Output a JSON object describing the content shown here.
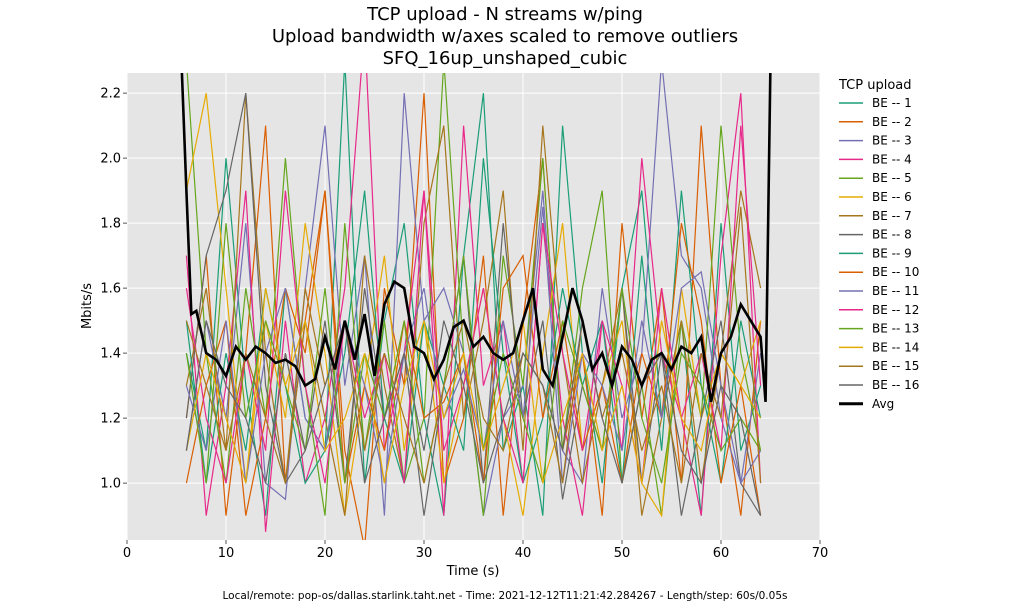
{
  "chart_data": {
    "type": "line",
    "title": [
      "TCP upload - N streams w/ping",
      "Upload bandwidth w/axes scaled to remove outliers",
      "SFQ_16up_unshaped_cubic"
    ],
    "xlabel": "Time (s)",
    "ylabel": "Mbits/s",
    "xlim": [
      0,
      70
    ],
    "ylim": [
      0.825,
      2.262
    ],
    "xticks": [
      0,
      10,
      20,
      30,
      40,
      50,
      60,
      70
    ],
    "yticks": [
      1.0,
      1.2,
      1.4,
      1.6,
      1.8,
      2.0,
      2.2
    ],
    "grid": true,
    "background": "#e5e5e5",
    "legend": {
      "title": "TCP upload",
      "placement": "right-outside"
    },
    "footer": "Local/remote: pop-os/dallas.starlink.taht.net - Time: 2021-12-12T11:21:42.284267 - Length/step: 60s/0.05s",
    "be_x": [
      6,
      8,
      10,
      12,
      14,
      16,
      18,
      20,
      22,
      24,
      26,
      28,
      30,
      32,
      34,
      36,
      38,
      40,
      42,
      44,
      46,
      48,
      50,
      52,
      54,
      56,
      58,
      60,
      62,
      64
    ],
    "series": [
      {
        "name": "BE -- 1",
        "color": "#1b9e77",
        "values": [
          1.4,
          1.1,
          2.0,
          1.3,
          0.9,
          1.6,
          1.2,
          1.1,
          2.3,
          1.0,
          1.5,
          1.8,
          1.2,
          0.9,
          1.7,
          2.2,
          1.1,
          1.3,
          0.9,
          2.1,
          1.4,
          1.0,
          1.6,
          1.9,
          1.2,
          1.5,
          0.9,
          1.8,
          1.1,
          1.3
        ]
      },
      {
        "name": "BE -- 2",
        "color": "#d95f02",
        "values": [
          1.2,
          1.7,
          0.9,
          1.4,
          2.1,
          1.0,
          1.5,
          1.9,
          1.1,
          0.8,
          1.6,
          1.3,
          2.2,
          1.0,
          1.2,
          1.7,
          0.9,
          1.5,
          2.0,
          1.1,
          1.4,
          0.9,
          1.8,
          1.2,
          1.6,
          1.0,
          2.1,
          1.3,
          0.9,
          1.5
        ]
      },
      {
        "name": "BE -- 3",
        "color": "#7570b3",
        "values": [
          1.1,
          1.5,
          1.2,
          1.8,
          1.0,
          0.95,
          1.6,
          2.1,
          1.3,
          1.7,
          0.9,
          2.2,
          1.5,
          1.6,
          1.4,
          0.9,
          1.2,
          1.3,
          1.9,
          1.1,
          1.0,
          1.6,
          1.2,
          1.4,
          2.3,
          1.7,
          1.6,
          1.2,
          1.0,
          1.4
        ]
      },
      {
        "name": "BE -- 4",
        "color": "#e7298a",
        "values": [
          1.7,
          0.9,
          1.3,
          1.9,
          0.85,
          1.5,
          1.0,
          1.2,
          1.6,
          2.4,
          1.1,
          1.4,
          1.9,
          0.9,
          2.1,
          1.3,
          1.5,
          1.0,
          1.8,
          1.2,
          0.9,
          1.5,
          1.1,
          2.0,
          1.4,
          1.2,
          0.9,
          1.7,
          2.2,
          1.0
        ]
      },
      {
        "name": "BE -- 5",
        "color": "#66a61e",
        "values": [
          2.3,
          1.4,
          1.0,
          1.6,
          1.2,
          2.0,
          1.3,
          0.9,
          1.8,
          1.1,
          1.5,
          1.0,
          1.2,
          2.3,
          1.4,
          0.9,
          1.7,
          1.3,
          2.0,
          1.1,
          1.6,
          1.9,
          1.0,
          1.3,
          0.9,
          1.5,
          1.2,
          2.1,
          1.4,
          1.1
        ]
      },
      {
        "name": "BE -- 6",
        "color": "#e6ab02",
        "values": [
          1.9,
          2.2,
          1.6,
          1.0,
          1.5,
          1.2,
          1.8,
          1.4,
          0.9,
          1.3,
          1.7,
          1.1,
          1.5,
          1.0,
          1.3,
          1.6,
          1.2,
          0.9,
          1.4,
          1.8,
          1.1,
          1.3,
          1.5,
          1.0,
          0.9,
          1.6,
          1.2,
          1.4,
          1.3,
          1.5
        ]
      },
      {
        "name": "BE -- 7",
        "color": "#a6761d",
        "values": [
          1.3,
          1.6,
          1.1,
          2.2,
          1.4,
          1.0,
          1.5,
          1.2,
          0.9,
          1.7,
          1.3,
          1.0,
          1.8,
          2.1,
          1.2,
          1.5,
          1.9,
          1.1,
          2.1,
          1.4,
          1.0,
          1.3,
          1.6,
          0.9,
          1.2,
          1.5,
          1.0,
          1.4,
          1.9,
          1.6
        ]
      },
      {
        "name": "BE -- 8",
        "color": "#666666",
        "values": [
          1.2,
          1.7,
          1.9,
          2.2,
          1.3,
          1.0,
          1.1,
          1.5,
          1.0,
          1.6,
          1.2,
          1.4,
          0.9,
          1.3,
          1.7,
          1.0,
          1.8,
          1.2,
          1.5,
          0.95,
          1.3,
          1.1,
          1.6,
          1.0,
          1.4,
          0.9,
          1.2,
          1.5,
          1.0,
          0.9
        ]
      },
      {
        "name": "BE -- 9",
        "color": "#1b9e77",
        "values": [
          1.5,
          1.0,
          1.4,
          1.1,
          1.6,
          1.3,
          1.0,
          1.1,
          1.4,
          1.9,
          1.2,
          1.0,
          1.5,
          1.3,
          1.1,
          2.0,
          1.4,
          1.0,
          1.2,
          1.6,
          1.3,
          1.5,
          1.0,
          1.7,
          1.1,
          1.9,
          1.3,
          1.0,
          1.5,
          1.2
        ]
      },
      {
        "name": "BE -- 10",
        "color": "#d95f02",
        "values": [
          1.0,
          1.3,
          1.5,
          0.9,
          1.2,
          1.6,
          1.4,
          1.9,
          1.0,
          1.3,
          1.1,
          1.5,
          1.2,
          1.25,
          1.4,
          1.0,
          1.6,
          1.7,
          1.2,
          1.5,
          1.1,
          1.3,
          1.0,
          1.4,
          1.2,
          1.8,
          1.5,
          1.0,
          1.3,
          0.9
        ]
      },
      {
        "name": "BE -- 11",
        "color": "#7570b3",
        "values": [
          1.3,
          1.1,
          1.5,
          1.0,
          1.4,
          1.6,
          1.2,
          1.1,
          1.5,
          1.3,
          1.0,
          1.4,
          1.6,
          1.2,
          1.35,
          1.1,
          1.5,
          1.2,
          1.85,
          1.0,
          1.4,
          1.3,
          1.1,
          1.5,
          1.2,
          1.6,
          1.65,
          1.3,
          1.0,
          1.1
        ]
      },
      {
        "name": "BE -- 12",
        "color": "#e7298a",
        "values": [
          1.6,
          1.2,
          1.0,
          1.4,
          1.1,
          1.9,
          1.3,
          1.0,
          1.5,
          1.2,
          1.4,
          1.0,
          1.9,
          1.1,
          1.3,
          1.6,
          1.2,
          1.0,
          1.8,
          1.4,
          1.1,
          1.5,
          1.3,
          1.0,
          1.6,
          1.2,
          1.4,
          1.1,
          2.1,
          1.3
        ]
      },
      {
        "name": "BE -- 13",
        "color": "#66a61e",
        "values": [
          1.4,
          1.0,
          1.8,
          1.2,
          1.5,
          1.3,
          1.1,
          1.6,
          1.0,
          1.4,
          1.2,
          1.5,
          1.0,
          1.3,
          1.7,
          1.1,
          1.4,
          1.2,
          1.0,
          1.5,
          1.3,
          1.1,
          1.6,
          1.2,
          1.0,
          1.4,
          1.3,
          1.1,
          1.2,
          1.1
        ]
      },
      {
        "name": "BE -- 14",
        "color": "#e6ab02",
        "values": [
          1.1,
          1.4,
          1.2,
          1.0,
          1.6,
          1.3,
          1.5,
          1.1,
          1.2,
          1.4,
          1.0,
          1.3,
          1.5,
          1.2,
          1.4,
          1.1,
          1.3,
          1.5,
          1.0,
          1.2,
          1.4,
          1.1,
          1.3,
          1.0,
          1.5,
          1.2,
          1.1,
          1.4,
          1.3,
          1.2
        ]
      },
      {
        "name": "BE -- 15",
        "color": "#a6761d",
        "values": [
          1.5,
          1.3,
          1.1,
          1.4,
          1.2,
          1.0,
          1.6,
          1.3,
          1.5,
          1.1,
          1.4,
          1.2,
          1.0,
          1.3,
          1.5,
          1.2,
          1.1,
          1.4,
          1.3,
          1.0,
          1.5,
          1.2,
          1.4,
          1.1,
          1.3,
          1.0,
          1.4,
          1.2,
          1.85,
          1.0
        ]
      },
      {
        "name": "BE -- 16",
        "color": "#666666",
        "values": [
          1.1,
          1.5,
          1.3,
          1.2,
          1.0,
          1.4,
          1.1,
          1.3,
          1.5,
          1.0,
          1.2,
          1.4,
          1.1,
          1.5,
          1.3,
          1.0,
          1.2,
          1.4,
          1.3,
          1.1,
          1.5,
          1.2,
          1.0,
          1.3,
          1.4,
          1.1,
          1.0,
          1.3,
          1.2,
          0.9
        ]
      }
    ],
    "avg": {
      "name": "Avg",
      "color": "#000000",
      "x": [
        5.5,
        6,
        6.5,
        7,
        8,
        9,
        10,
        11,
        12,
        13,
        14,
        15,
        16,
        17,
        18,
        19,
        20,
        21,
        22,
        23,
        24,
        25,
        26,
        27,
        28,
        29,
        30,
        31,
        32,
        33,
        34,
        35,
        36,
        37,
        38,
        39,
        40,
        41,
        42,
        43,
        44,
        45,
        46,
        47,
        48,
        49,
        50,
        51,
        52,
        53,
        54,
        55,
        56,
        57,
        58,
        59,
        60,
        61,
        62,
        63,
        64,
        64.5,
        65
      ],
      "values": [
        2.3,
        1.9,
        1.52,
        1.53,
        1.4,
        1.38,
        1.33,
        1.42,
        1.38,
        1.42,
        1.4,
        1.37,
        1.38,
        1.36,
        1.3,
        1.32,
        1.45,
        1.35,
        1.5,
        1.38,
        1.52,
        1.33,
        1.55,
        1.62,
        1.6,
        1.42,
        1.4,
        1.32,
        1.38,
        1.48,
        1.5,
        1.42,
        1.45,
        1.4,
        1.38,
        1.4,
        1.5,
        1.6,
        1.35,
        1.3,
        1.45,
        1.6,
        1.5,
        1.35,
        1.4,
        1.3,
        1.42,
        1.38,
        1.3,
        1.38,
        1.4,
        1.35,
        1.42,
        1.4,
        1.45,
        1.25,
        1.4,
        1.45,
        1.55,
        1.5,
        1.45,
        1.25,
        2.3
      ]
    }
  }
}
